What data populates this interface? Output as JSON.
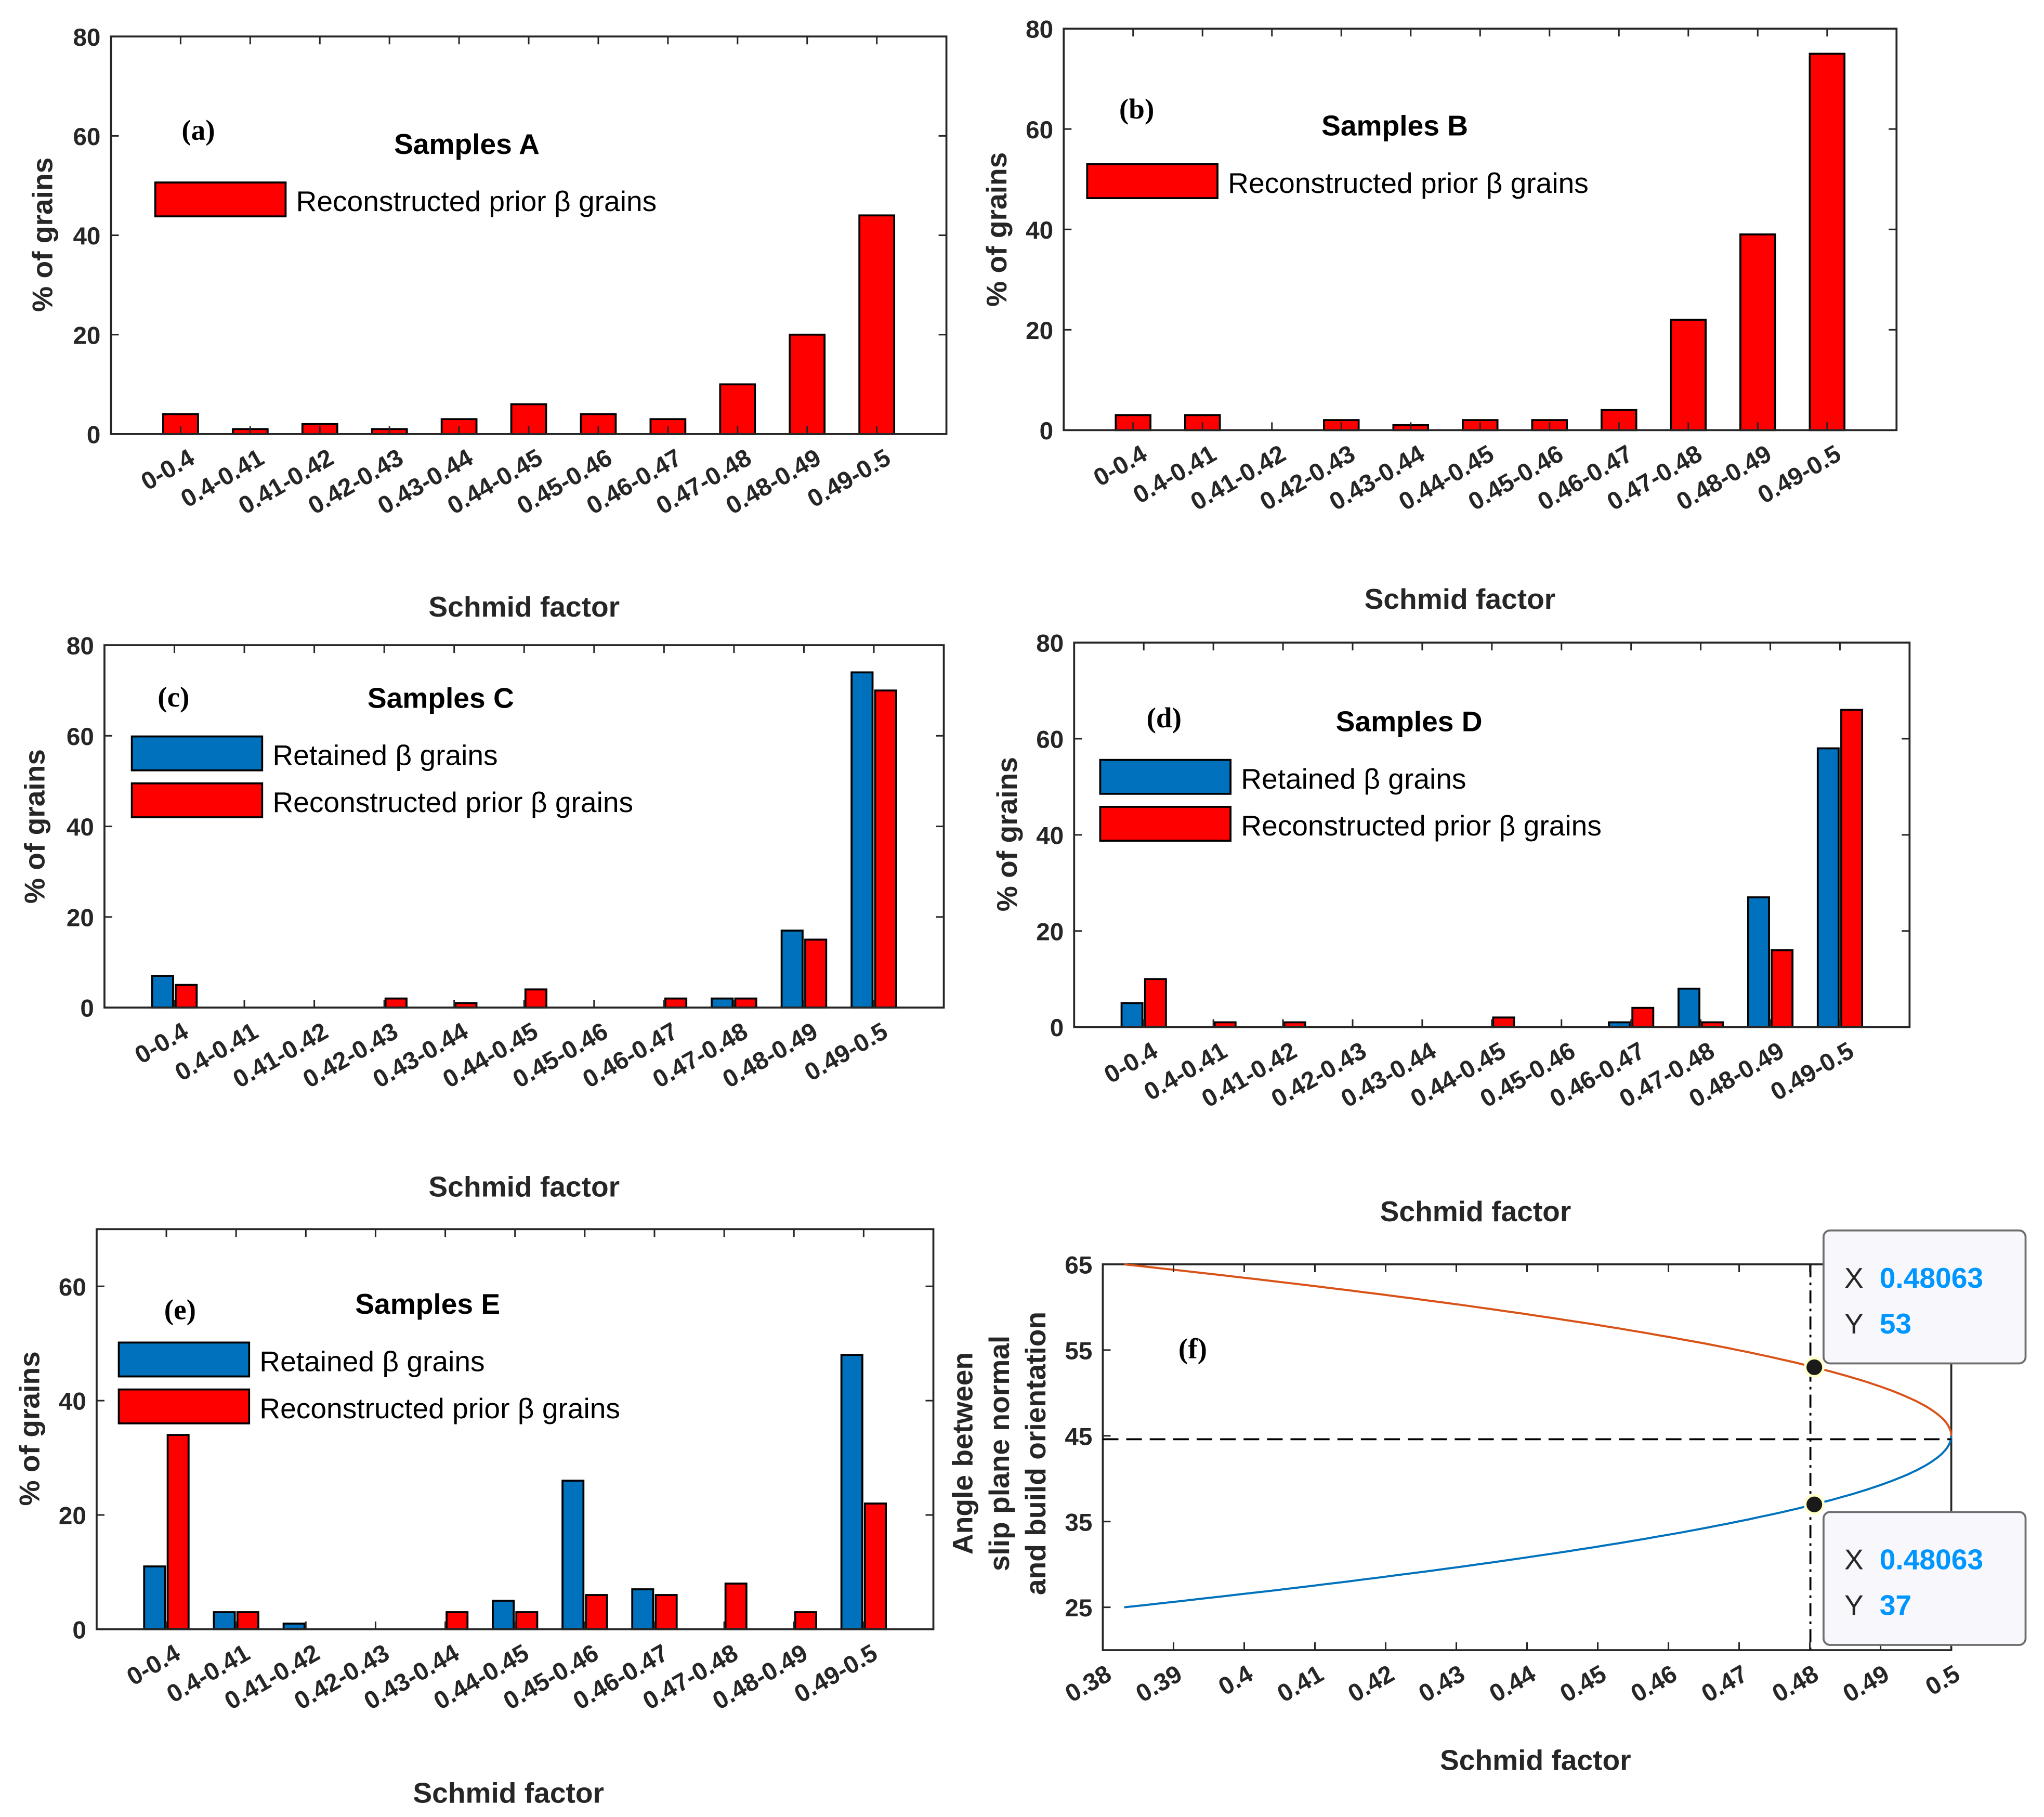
{
  "colors": {
    "retained": "#0072BD",
    "reconstructed": "#FF0000",
    "curve_upper": "#D95319",
    "curve_lower": "#0072BD",
    "tip_value": "#0096FF"
  },
  "chart_data": [
    {
      "type": "bar",
      "panel": "(a)",
      "title": "Samples A",
      "xlabel": "Schmid factor",
      "ylabel": "% of grains",
      "ylim": [
        0,
        80
      ],
      "yticks": [
        0,
        20,
        40,
        60,
        80
      ],
      "categories": [
        "0-0.4",
        "0.4-0.41",
        "0.41-0.42",
        "0.42-0.43",
        "0.43-0.44",
        "0.44-0.45",
        "0.45-0.46",
        "0.46-0.47",
        "0.47-0.48",
        "0.48-0.49",
        "0.49-0.5"
      ],
      "series": [
        {
          "name": "Reconstructed  prior β grains",
          "color_key": "reconstructed",
          "values": [
            4,
            1,
            2,
            1,
            3,
            6,
            4,
            3,
            10,
            20,
            44
          ]
        }
      ],
      "legend": "top-left"
    },
    {
      "type": "bar",
      "panel": "(b)",
      "title": "Samples B",
      "xlabel": "Schmid factor",
      "ylabel": "% of grains",
      "ylim": [
        0,
        80
      ],
      "yticks": [
        0,
        20,
        40,
        60,
        80
      ],
      "categories": [
        "0-0.4",
        "0.4-0.41",
        "0.41-0.42",
        "0.42-0.43",
        "0.43-0.44",
        "0.44-0.45",
        "0.45-0.46",
        "0.46-0.47",
        "0.47-0.48",
        "0.48-0.49",
        "0.49-0.5"
      ],
      "series": [
        {
          "name": "Reconstructed prior β grains",
          "color_key": "reconstructed",
          "values": [
            3,
            3,
            0,
            2,
            1,
            2,
            2,
            4,
            22,
            39,
            75
          ]
        }
      ],
      "legend": "top-left"
    },
    {
      "type": "bar",
      "panel": "(c)",
      "title": "Samples C",
      "xlabel": "Schmid factor",
      "ylabel": "% of grains",
      "ylim": [
        0,
        80
      ],
      "yticks": [
        0,
        20,
        40,
        60,
        80
      ],
      "categories": [
        "0-0.4",
        "0.4-0.41",
        "0.41-0.42",
        "0.42-0.43",
        "0.43-0.44",
        "0.44-0.45",
        "0.45-0.46",
        "0.46-0.47",
        "0.47-0.48",
        "0.48-0.49",
        "0.49-0.5"
      ],
      "series": [
        {
          "name": "Retained β grains",
          "color_key": "retained",
          "values": [
            7,
            0,
            0,
            0,
            0,
            0,
            0,
            0,
            2,
            17,
            74
          ]
        },
        {
          "name": "Reconstructed prior β grains",
          "color_key": "reconstructed",
          "values": [
            5,
            0,
            0,
            2,
            1,
            4,
            0,
            2,
            2,
            15,
            70
          ]
        }
      ],
      "legend": "top-left"
    },
    {
      "type": "bar",
      "panel": "(d)",
      "title": "Samples D",
      "xlabel": "Schmid factor",
      "ylabel": "% of grains",
      "ylim": [
        0,
        80
      ],
      "yticks": [
        0,
        20,
        40,
        60,
        80
      ],
      "categories": [
        "0-0.4",
        "0.4-0.41",
        "0.41-0.42",
        "0.42-0.43",
        "0.43-0.44",
        "0.44-0.45",
        "0.45-0.46",
        "0.46-0.47",
        "0.47-0.48",
        "0.48-0.49",
        "0.49-0.5"
      ],
      "series": [
        {
          "name": "Retained β grains",
          "color_key": "retained",
          "values": [
            5,
            0,
            0,
            0,
            0,
            0,
            0,
            1,
            8,
            27,
            58
          ]
        },
        {
          "name": "Reconstructed prior β grains",
          "color_key": "reconstructed",
          "values": [
            10,
            1,
            1,
            0,
            0,
            2,
            0,
            4,
            1,
            16,
            66
          ]
        }
      ],
      "legend": "top-left"
    },
    {
      "type": "bar",
      "panel": "(e)",
      "title": "Samples E",
      "xlabel": "Schmid factor",
      "ylabel": "% of grains",
      "ylim": [
        0,
        70
      ],
      "yticks": [
        0,
        20,
        40,
        60
      ],
      "categories": [
        "0-0.4",
        "0.4-0.41",
        "0.41-0.42",
        "0.42-0.43",
        "0.43-0.44",
        "0.44-0.45",
        "0.45-0.46",
        "0.46-0.47",
        "0.47-0.48",
        "0.48-0.49",
        "0.49-0.5"
      ],
      "series": [
        {
          "name": "Retained β grains",
          "color_key": "retained",
          "values": [
            11,
            3,
            1,
            0,
            0,
            5,
            26,
            7,
            0,
            0,
            48
          ]
        },
        {
          "name": "Reconstructed prior β grains",
          "color_key": "reconstructed",
          "values": [
            34,
            3,
            0,
            0,
            3,
            3,
            6,
            6,
            8,
            3,
            22
          ]
        }
      ],
      "legend": "top-left"
    },
    {
      "type": "line",
      "panel": "(f)",
      "xlabel": "Schmid factor",
      "ylabel_lines": [
        "Angle between",
        "slip plane normal",
        "and build orientation"
      ],
      "xlim": [
        0.38,
        0.5
      ],
      "ylim": [
        20,
        65
      ],
      "xticks": [
        "0.38",
        "0.39",
        "0.4",
        "0.41",
        "0.42",
        "0.43",
        "0.44",
        "0.45",
        "0.46",
        "0.47",
        "0.48",
        "0.49",
        "0.5"
      ],
      "yticks": [
        25,
        35,
        45,
        55,
        65
      ],
      "relation": "x = 0.5*sin(2*angle)",
      "series": [
        {
          "name": "upper",
          "color_key": "curve_upper",
          "angle_range": [
            45,
            65
          ]
        },
        {
          "name": "lower",
          "color_key": "curve_lower",
          "angle_range": [
            25,
            45
          ]
        }
      ],
      "reference_lines": {
        "horizontal_y": 44.6,
        "vertical_x": 0.48063
      },
      "datatips": [
        {
          "x_label": "X",
          "x_value": "0.48063",
          "y_label": "Y",
          "y_value": "53"
        },
        {
          "x_label": "X",
          "x_value": "0.48063",
          "y_label": "Y",
          "y_value": "37"
        }
      ]
    }
  ]
}
